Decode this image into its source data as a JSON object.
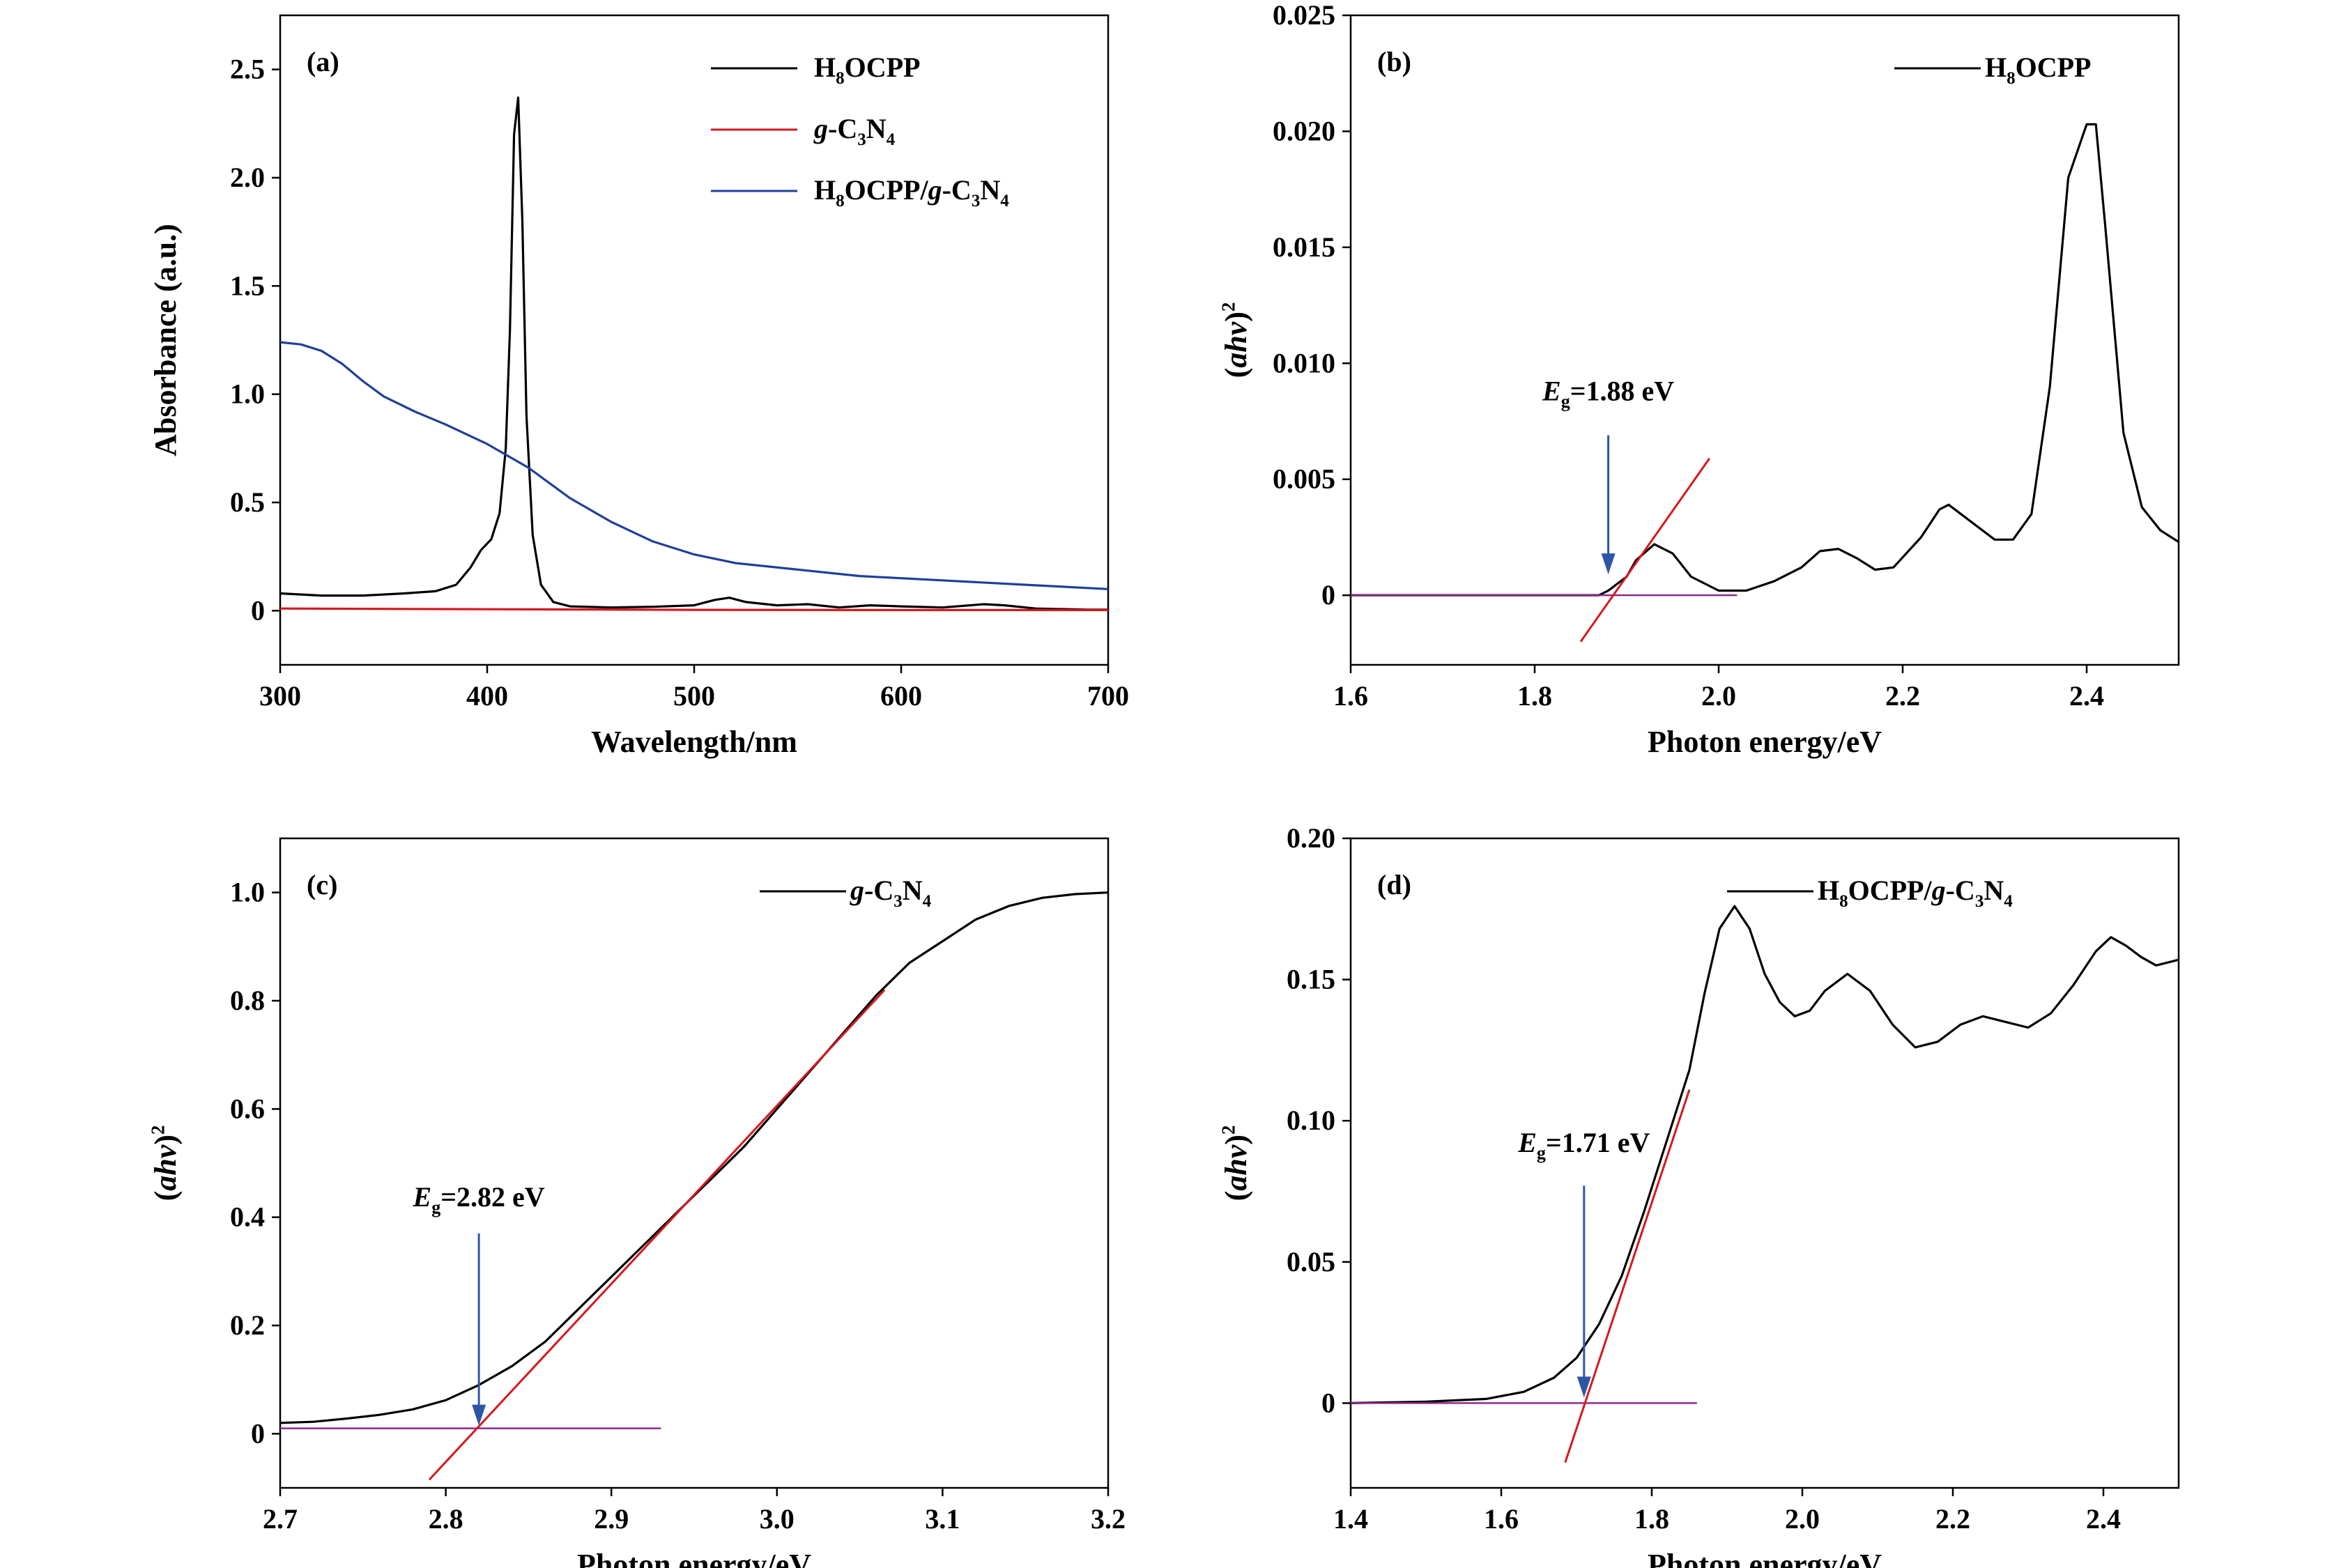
{
  "colors": {
    "black_series": "#000000",
    "red_series": "#d6181e",
    "blue_series": "#1f3f99",
    "baseline": "#8b2a8f",
    "arrow": "#2f56a6"
  },
  "chart_data": [
    {
      "id": "a",
      "panel_label": "(a)",
      "type": "line",
      "xlabel": "Wavelength/nm",
      "ylabel": "Absorbance (a.u.)",
      "xlim": [
        300,
        700
      ],
      "ylim": [
        -0.25,
        2.75
      ],
      "xticks": [
        300,
        400,
        500,
        600,
        700
      ],
      "xtick_labels": [
        "300",
        "400",
        "500",
        "600",
        "700"
      ],
      "yticks": [
        0,
        0.5,
        1.0,
        1.5,
        2.0,
        2.5
      ],
      "ytick_labels": [
        "0",
        "0.5",
        "1.0",
        "1.5",
        "2.0",
        "2.5"
      ],
      "legend": {
        "position": "top-right",
        "entries": [
          {
            "parts": [
              [
                "H",
                ""
              ],
              [
                "8",
                "sub"
              ],
              [
                "OCPP",
                ""
              ]
            ],
            "color": "#000000"
          },
          {
            "parts": [
              [
                "g",
                "i"
              ],
              [
                "-C",
                ""
              ],
              [
                "3",
                "sub"
              ],
              [
                "N",
                ""
              ],
              [
                "4",
                "sub"
              ]
            ],
            "color": "#d6181e"
          },
          {
            "parts": [
              [
                "H",
                ""
              ],
              [
                "8",
                "sub"
              ],
              [
                "OCPP/",
                ""
              ],
              [
                "g",
                "i"
              ],
              [
                "-C",
                ""
              ],
              [
                "3",
                "sub"
              ],
              [
                "N",
                ""
              ],
              [
                "4",
                "sub"
              ]
            ],
            "color": "#1f3f99"
          }
        ]
      },
      "series": [
        {
          "color": "#000000",
          "points": [
            [
              300,
              0.08
            ],
            [
              320,
              0.07
            ],
            [
              340,
              0.07
            ],
            [
              360,
              0.08
            ],
            [
              375,
              0.09
            ],
            [
              385,
              0.12
            ],
            [
              392,
              0.2
            ],
            [
              397,
              0.28
            ],
            [
              402,
              0.33
            ],
            [
              406,
              0.45
            ],
            [
              409,
              0.75
            ],
            [
              411,
              1.3
            ],
            [
              413,
              2.2
            ],
            [
              415,
              2.37
            ],
            [
              417,
              1.8
            ],
            [
              419,
              0.9
            ],
            [
              422,
              0.35
            ],
            [
              426,
              0.12
            ],
            [
              432,
              0.04
            ],
            [
              440,
              0.02
            ],
            [
              460,
              0.015
            ],
            [
              480,
              0.018
            ],
            [
              500,
              0.025
            ],
            [
              510,
              0.05
            ],
            [
              517,
              0.06
            ],
            [
              525,
              0.04
            ],
            [
              540,
              0.025
            ],
            [
              555,
              0.03
            ],
            [
              570,
              0.015
            ],
            [
              585,
              0.025
            ],
            [
              600,
              0.02
            ],
            [
              620,
              0.015
            ],
            [
              640,
              0.03
            ],
            [
              650,
              0.025
            ],
            [
              665,
              0.01
            ],
            [
              690,
              0.005
            ],
            [
              700,
              0.005
            ]
          ]
        },
        {
          "color": "#d6181e",
          "points": [
            [
              300,
              0.01
            ],
            [
              400,
              0.007
            ],
            [
              500,
              0.004
            ],
            [
              600,
              0.003
            ],
            [
              700,
              0.003
            ]
          ]
        },
        {
          "color": "#1f3f99",
          "points": [
            [
              300,
              1.24
            ],
            [
              310,
              1.23
            ],
            [
              320,
              1.2
            ],
            [
              330,
              1.14
            ],
            [
              340,
              1.06
            ],
            [
              350,
              0.99
            ],
            [
              365,
              0.92
            ],
            [
              380,
              0.86
            ],
            [
              400,
              0.77
            ],
            [
              420,
              0.66
            ],
            [
              440,
              0.52
            ],
            [
              460,
              0.41
            ],
            [
              480,
              0.32
            ],
            [
              500,
              0.26
            ],
            [
              520,
              0.22
            ],
            [
              550,
              0.19
            ],
            [
              580,
              0.16
            ],
            [
              620,
              0.14
            ],
            [
              660,
              0.12
            ],
            [
              700,
              0.1
            ]
          ]
        }
      ]
    },
    {
      "id": "b",
      "panel_label": "(b)",
      "type": "line",
      "xlabel": "Photon energy/eV",
      "ylabel_parts": [
        [
          "(",
          "b"
        ],
        [
          "ahv",
          "bi"
        ],
        [
          ")",
          "b"
        ],
        [
          "2",
          "sup"
        ]
      ],
      "xlim": [
        1.6,
        2.5
      ],
      "ylim": [
        -0.003,
        0.025
      ],
      "xticks": [
        1.6,
        1.8,
        2.0,
        2.2,
        2.4
      ],
      "xtick_labels": [
        "1.6",
        "1.8",
        "2.0",
        "2.2",
        "2.4"
      ],
      "yticks": [
        0,
        0.005,
        0.01,
        0.015,
        0.02,
        0.025
      ],
      "ytick_labels": [
        "0",
        "0.005",
        "0.010",
        "0.015",
        "0.020",
        "0.025"
      ],
      "legend": {
        "position": "top-right",
        "entries": [
          {
            "parts": [
              [
                "H",
                ""
              ],
              [
                "8",
                "sub"
              ],
              [
                "OCPP",
                ""
              ]
            ],
            "color": "#000000"
          }
        ]
      },
      "series": [
        {
          "color": "#000000",
          "points": [
            [
              1.6,
              0.0
            ],
            [
              1.8,
              0.0
            ],
            [
              1.87,
              0.0
            ],
            [
              1.88,
              0.0002
            ],
            [
              1.9,
              0.0008
            ],
            [
              1.91,
              0.0015
            ],
            [
              1.93,
              0.0022
            ],
            [
              1.95,
              0.0018
            ],
            [
              1.97,
              0.0008
            ],
            [
              2.0,
              0.0002
            ],
            [
              2.03,
              0.0002
            ],
            [
              2.06,
              0.0006
            ],
            [
              2.09,
              0.0012
            ],
            [
              2.11,
              0.0019
            ],
            [
              2.13,
              0.002
            ],
            [
              2.15,
              0.0016
            ],
            [
              2.17,
              0.0011
            ],
            [
              2.19,
              0.0012
            ],
            [
              2.22,
              0.0025
            ],
            [
              2.24,
              0.0037
            ],
            [
              2.25,
              0.0039
            ],
            [
              2.27,
              0.0033
            ],
            [
              2.3,
              0.0024
            ],
            [
              2.32,
              0.0024
            ],
            [
              2.34,
              0.0035
            ],
            [
              2.36,
              0.009
            ],
            [
              2.38,
              0.018
            ],
            [
              2.4,
              0.0203
            ],
            [
              2.41,
              0.0203
            ],
            [
              2.42,
              0.016
            ],
            [
              2.44,
              0.007
            ],
            [
              2.46,
              0.0038
            ],
            [
              2.48,
              0.0028
            ],
            [
              2.5,
              0.0023
            ]
          ]
        }
      ],
      "baseline": {
        "x": [
          1.6,
          2.02
        ],
        "y": 0.0,
        "color": "#8b2a8f"
      },
      "tangent": {
        "p1": [
          1.85,
          -0.002
        ],
        "p2": [
          1.99,
          0.0059
        ],
        "color": "#d6181e"
      },
      "arrow": {
        "x": 1.88,
        "y_from": 0.0069,
        "y_to": 0.0009,
        "color": "#2f56a6"
      },
      "annotation": {
        "label_sub": "g",
        "value": "=1.88 eV",
        "at": [
          1.88,
          0.0084
        ]
      }
    },
    {
      "id": "c",
      "panel_label": "(c)",
      "type": "line",
      "xlabel": "Photon energy/eV",
      "ylabel_parts": [
        [
          "(",
          "b"
        ],
        [
          "ahv",
          "bi"
        ],
        [
          ")",
          "b"
        ],
        [
          "2",
          "sup"
        ]
      ],
      "xlim": [
        2.7,
        3.2
      ],
      "ylim": [
        -0.1,
        1.1
      ],
      "xticks": [
        2.7,
        2.8,
        2.9,
        3.0,
        3.1,
        3.2
      ],
      "xtick_labels": [
        "2.7",
        "2.8",
        "2.9",
        "3.0",
        "3.1",
        "3.2"
      ],
      "yticks": [
        0,
        0.2,
        0.4,
        0.6,
        0.8,
        1.0
      ],
      "ytick_labels": [
        "0",
        "0.2",
        "0.4",
        "0.6",
        "0.8",
        "1.0"
      ],
      "legend": {
        "position": "top-right",
        "entries": [
          {
            "parts": [
              [
                "g",
                "i"
              ],
              [
                "-C",
                ""
              ],
              [
                "3",
                "sub"
              ],
              [
                "N",
                ""
              ],
              [
                "4",
                "sub"
              ]
            ],
            "color": "#000000"
          }
        ]
      },
      "series": [
        {
          "color": "#000000",
          "points": [
            [
              2.7,
              0.02
            ],
            [
              2.72,
              0.022
            ],
            [
              2.74,
              0.028
            ],
            [
              2.76,
              0.035
            ],
            [
              2.78,
              0.045
            ],
            [
              2.8,
              0.062
            ],
            [
              2.82,
              0.09
            ],
            [
              2.84,
              0.125
            ],
            [
              2.86,
              0.17
            ],
            [
              2.88,
              0.23
            ],
            [
              2.9,
              0.29
            ],
            [
              2.92,
              0.35
            ],
            [
              2.94,
              0.41
            ],
            [
              2.96,
              0.47
            ],
            [
              2.98,
              0.53
            ],
            [
              3.0,
              0.6
            ],
            [
              3.02,
              0.67
            ],
            [
              3.04,
              0.74
            ],
            [
              3.06,
              0.81
            ],
            [
              3.08,
              0.87
            ],
            [
              3.1,
              0.91
            ],
            [
              3.12,
              0.95
            ],
            [
              3.14,
              0.975
            ],
            [
              3.16,
              0.99
            ],
            [
              3.18,
              0.997
            ],
            [
              3.2,
              1.0
            ]
          ]
        }
      ],
      "baseline": {
        "x": [
          2.7,
          2.93
        ],
        "y": 0.01,
        "color": "#8b2a8f"
      },
      "tangent": {
        "p1": [
          2.79,
          -0.085
        ],
        "p2": [
          3.065,
          0.82
        ],
        "color": "#d6181e"
      },
      "arrow": {
        "x": 2.82,
        "y_from": 0.37,
        "y_to": 0.015,
        "color": "#2f56a6"
      },
      "annotation": {
        "label_sub": "g",
        "value": "=2.82 eV",
        "at": [
          2.82,
          0.42
        ]
      }
    },
    {
      "id": "d",
      "panel_label": "(d)",
      "type": "line",
      "xlabel": "Photon energy/eV",
      "ylabel_parts": [
        [
          "(",
          "b"
        ],
        [
          "ahv",
          "bi"
        ],
        [
          ")",
          "b"
        ],
        [
          "2",
          "sup"
        ]
      ],
      "xlim": [
        1.4,
        2.5
      ],
      "ylim": [
        -0.03,
        0.2
      ],
      "xticks": [
        1.4,
        1.6,
        1.8,
        2.0,
        2.2,
        2.4
      ],
      "xtick_labels": [
        "1.4",
        "1.6",
        "1.8",
        "2.0",
        "2.2",
        "2.4"
      ],
      "yticks": [
        0,
        0.05,
        0.1,
        0.15,
        0.2
      ],
      "ytick_labels": [
        "0",
        "0.05",
        "0.10",
        "0.15",
        "0.20"
      ],
      "legend": {
        "position": "top-right",
        "entries": [
          {
            "parts": [
              [
                "H",
                ""
              ],
              [
                "8",
                "sub"
              ],
              [
                "OCPP/",
                ""
              ],
              [
                "g",
                "i"
              ],
              [
                "-C",
                ""
              ],
              [
                "3",
                "sub"
              ],
              [
                "N",
                ""
              ],
              [
                "4",
                "sub"
              ]
            ],
            "color": "#000000"
          }
        ]
      },
      "series": [
        {
          "color": "#000000",
          "points": [
            [
              1.4,
              0.0
            ],
            [
              1.5,
              0.0005
            ],
            [
              1.58,
              0.0015
            ],
            [
              1.63,
              0.004
            ],
            [
              1.67,
              0.009
            ],
            [
              1.7,
              0.016
            ],
            [
              1.73,
              0.028
            ],
            [
              1.76,
              0.045
            ],
            [
              1.79,
              0.068
            ],
            [
              1.82,
              0.093
            ],
            [
              1.85,
              0.118
            ],
            [
              1.87,
              0.145
            ],
            [
              1.89,
              0.168
            ],
            [
              1.91,
              0.176
            ],
            [
              1.93,
              0.168
            ],
            [
              1.95,
              0.152
            ],
            [
              1.97,
              0.142
            ],
            [
              1.99,
              0.137
            ],
            [
              2.01,
              0.139
            ],
            [
              2.03,
              0.146
            ],
            [
              2.06,
              0.152
            ],
            [
              2.09,
              0.146
            ],
            [
              2.12,
              0.134
            ],
            [
              2.15,
              0.126
            ],
            [
              2.18,
              0.128
            ],
            [
              2.21,
              0.134
            ],
            [
              2.24,
              0.137
            ],
            [
              2.27,
              0.135
            ],
            [
              2.3,
              0.133
            ],
            [
              2.33,
              0.138
            ],
            [
              2.36,
              0.148
            ],
            [
              2.39,
              0.16
            ],
            [
              2.41,
              0.165
            ],
            [
              2.43,
              0.162
            ],
            [
              2.45,
              0.158
            ],
            [
              2.47,
              0.155
            ],
            [
              2.5,
              0.157
            ]
          ]
        }
      ],
      "baseline": {
        "x": [
          1.4,
          1.86
        ],
        "y": 0.0,
        "color": "#8b2a8f"
      },
      "tangent": {
        "p1": [
          1.685,
          -0.021
        ],
        "p2": [
          1.85,
          0.111
        ],
        "color": "#d6181e"
      },
      "arrow": {
        "x": 1.71,
        "y_from": 0.077,
        "y_to": 0.002,
        "color": "#2f56a6"
      },
      "annotation": {
        "label_sub": "g",
        "value": "=1.71 eV",
        "at": [
          1.71,
          0.089
        ]
      }
    }
  ]
}
